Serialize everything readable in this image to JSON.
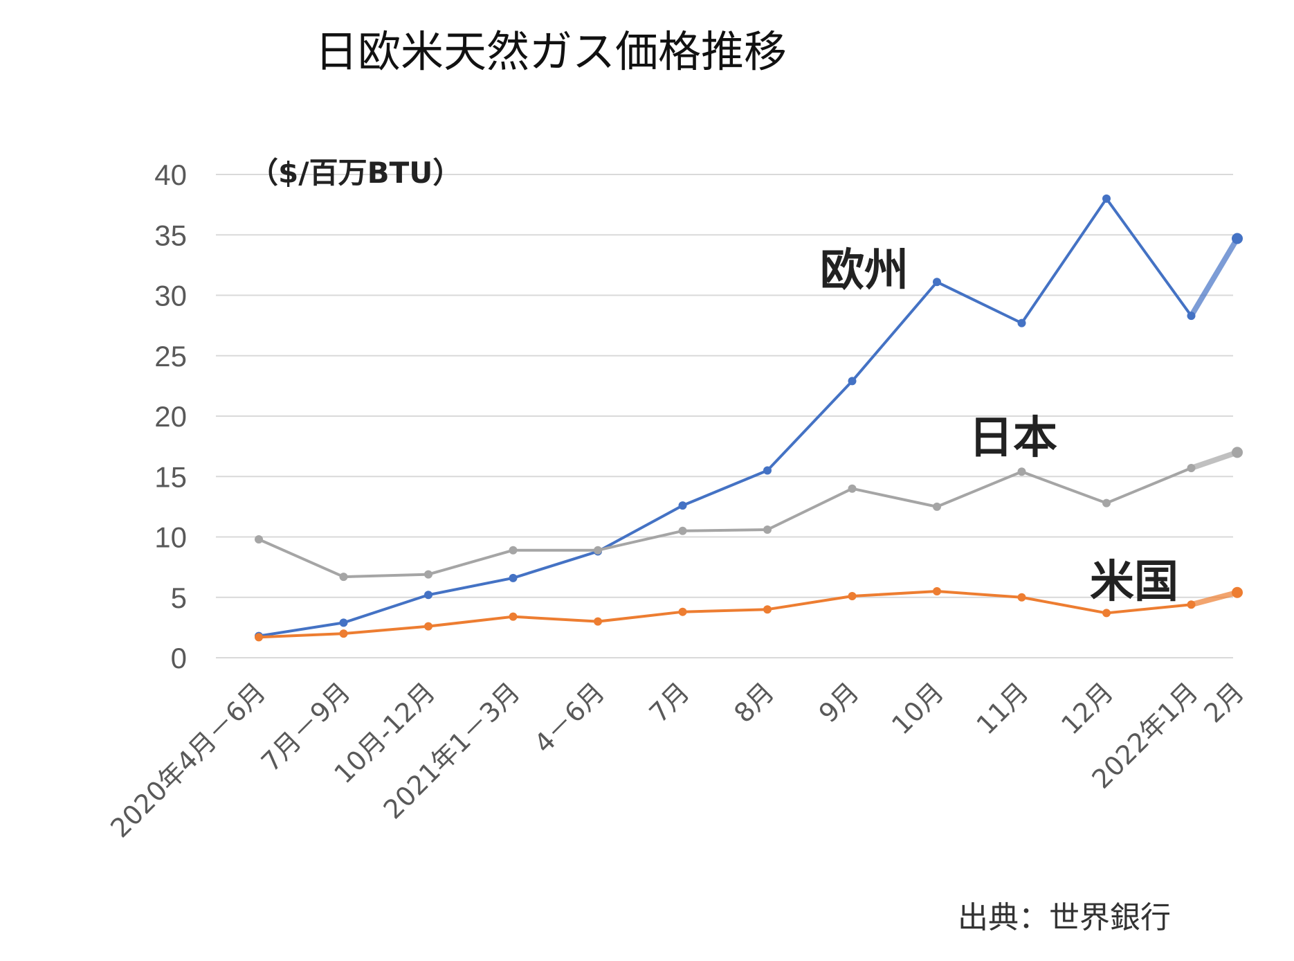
{
  "chart_data": {
    "type": "line",
    "title": "日欧米天然ガス価格推移",
    "unit_label": "（$/百万BTU）",
    "source": "出典：世界銀行",
    "categories": [
      "2020年4月－6月",
      "7月－9月",
      "10月-12月",
      "2021年1－3月",
      "4－6月",
      "7月",
      "8月",
      "9月",
      "10月",
      "11月",
      "12月",
      "2022年1月",
      "2月"
    ],
    "ylim": [
      0,
      40
    ],
    "yticks": [
      "0",
      "5",
      "10",
      "15",
      "20",
      "25",
      "30",
      "35",
      "40"
    ],
    "grid": true,
    "series": [
      {
        "name": "欧州",
        "color": "#4472C4",
        "values": [
          1.8,
          2.9,
          5.2,
          6.6,
          8.8,
          12.6,
          15.5,
          22.9,
          31.1,
          27.7,
          38.0,
          28.3,
          34.7
        ]
      },
      {
        "name": "日本",
        "color": "#A5A5A5",
        "values": [
          9.8,
          6.7,
          6.9,
          8.9,
          8.9,
          10.5,
          10.6,
          14.0,
          12.5,
          15.4,
          12.8,
          15.7,
          17.0
        ]
      },
      {
        "name": "米国",
        "color": "#ED7D31",
        "values": [
          1.7,
          2.0,
          2.6,
          3.4,
          3.0,
          3.8,
          4.0,
          5.1,
          5.5,
          5.0,
          3.7,
          4.4,
          5.4
        ]
      }
    ]
  }
}
